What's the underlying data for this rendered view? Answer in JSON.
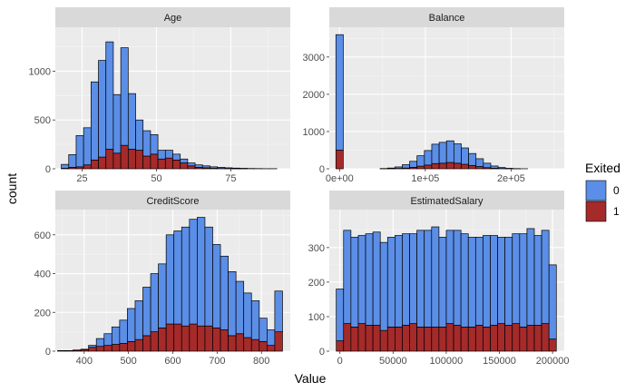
{
  "chart_data": {
    "type": "histogram-facets",
    "xlabel": "Value",
    "ylabel": "count",
    "legend": {
      "title": "Exited",
      "position": "right",
      "items": [
        {
          "label": "0",
          "color": "#5b8ee6"
        },
        {
          "label": "1",
          "color": "#a52a2a"
        }
      ]
    },
    "stacked": true,
    "grid": true,
    "facets": [
      {
        "name": "Age",
        "xlim": [
          16,
          95
        ],
        "ylim": [
          0,
          1450
        ],
        "xticks": [
          25,
          50,
          75
        ],
        "xtick_labels": [
          "25",
          "50",
          "75"
        ],
        "yticks": [
          0,
          500,
          1000
        ],
        "ytick_labels": [
          "0",
          "500",
          "1000"
        ],
        "bin_start": 18,
        "bin_width": 2.5,
        "series": [
          {
            "name": "0",
            "values": [
              40,
              130,
              320,
              380,
              800,
              990,
              1100,
              600,
              1000,
              570,
              310,
              260,
              200,
              90,
              80,
              60,
              40,
              30,
              25,
              20,
              15,
              12,
              8,
              6,
              4,
              3,
              2,
              1,
              1
            ]
          },
          {
            "name": "1",
            "values": [
              5,
              15,
              20,
              40,
              90,
              120,
              200,
              160,
              240,
              200,
              190,
              130,
              150,
              100,
              110,
              90,
              60,
              30,
              15,
              10,
              5,
              3,
              2,
              1,
              1,
              0,
              0,
              0,
              0
            ]
          }
        ]
      },
      {
        "name": "Balance",
        "xlim": [
          -12000,
          262000
        ],
        "ylim": [
          0,
          3800
        ],
        "xticks": [
          0,
          100000,
          200000
        ],
        "xtick_labels": [
          "0e+00",
          "1e+05",
          "2e+05"
        ],
        "yticks": [
          0,
          1000,
          2000,
          3000
        ],
        "ytick_labels": [
          "0",
          "1000",
          "2000",
          "3000"
        ],
        "bin_start": -4300,
        "bin_width": 8600,
        "series": [
          {
            "name": "0",
            "values": [
              3100,
              0,
              0,
              0,
              0,
              0,
              5,
              15,
              40,
              90,
              160,
              280,
              390,
              520,
              560,
              580,
              520,
              440,
              320,
              210,
              120,
              60,
              25,
              10,
              4,
              1,
              0,
              0,
              0,
              0
            ]
          },
          {
            "name": "1",
            "values": [
              500,
              0,
              0,
              0,
              0,
              0,
              2,
              5,
              10,
              20,
              40,
              70,
              100,
              140,
              150,
              170,
              150,
              120,
              90,
              60,
              30,
              15,
              8,
              3,
              1,
              0,
              0,
              0,
              0,
              0
            ]
          }
        ]
      },
      {
        "name": "CreditScore",
        "xlim": [
          335,
          865
        ],
        "ylim": [
          0,
          730
        ],
        "xticks": [
          400,
          500,
          600,
          700,
          800
        ],
        "xtick_labels": [
          "400",
          "500",
          "600",
          "700",
          "800"
        ],
        "yticks": [
          0,
          200,
          400,
          600
        ],
        "ytick_labels": [
          "0",
          "200",
          "400",
          "600"
        ],
        "bin_start": 340,
        "bin_width": 17.5,
        "series": [
          {
            "name": "0",
            "values": [
              0,
              0,
              1,
              2,
              10,
              40,
              60,
              90,
              120,
              170,
              200,
              250,
              300,
              330,
              460,
              480,
              510,
              540,
              560,
              510,
              430,
              380,
              330,
              270,
              230,
              200,
              120,
              80,
              210
            ]
          },
          {
            "name": "1",
            "values": [
              3,
              3,
              5,
              8,
              20,
              25,
              30,
              35,
              40,
              50,
              60,
              80,
              100,
              120,
              140,
              140,
              130,
              140,
              130,
              130,
              120,
              110,
              80,
              90,
              70,
              60,
              50,
              30,
              100
            ]
          }
        ]
      },
      {
        "name": "EstimatedSalary",
        "xlim": [
          -10000,
          211000
        ],
        "ylim": [
          0,
          410
        ],
        "xticks": [
          0,
          50000,
          100000,
          150000,
          200000
        ],
        "xtick_labels": [
          "0",
          "50000",
          "100000",
          "150000",
          "200000"
        ],
        "yticks": [
          0,
          100,
          200,
          300
        ],
        "ytick_labels": [
          "0",
          "100",
          "200",
          "300"
        ],
        "bin_start": -3450,
        "bin_width": 6900,
        "series": [
          {
            "name": "0",
            "values": [
              150,
              270,
              260,
              255,
              265,
              270,
              255,
              260,
              265,
              265,
              260,
              280,
              280,
              290,
              260,
              270,
              275,
              270,
              260,
              255,
              265,
              260,
              250,
              255,
              260,
              270,
              280,
              260,
              270,
              215
            ]
          },
          {
            "name": "1",
            "values": [
              30,
              80,
              70,
              80,
              75,
              75,
              60,
              70,
              70,
              75,
              80,
              70,
              70,
              70,
              70,
              80,
              75,
              70,
              70,
              75,
              70,
              75,
              80,
              75,
              80,
              70,
              75,
              75,
              80,
              35
            ]
          }
        ]
      }
    ]
  }
}
